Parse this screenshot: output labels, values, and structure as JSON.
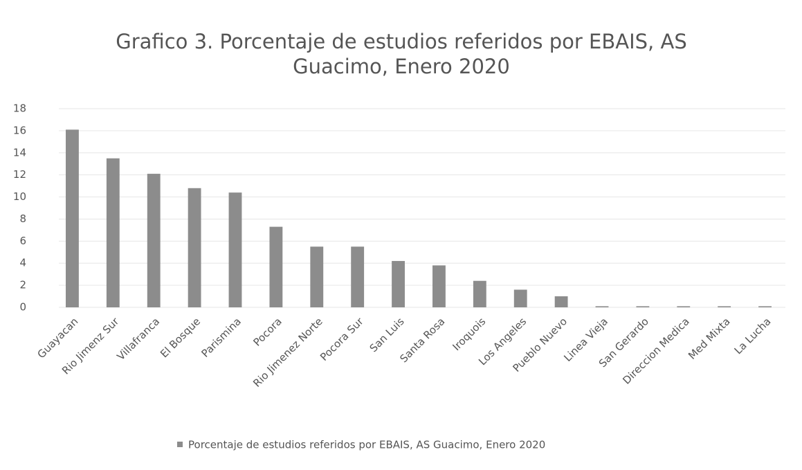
{
  "chart_data": {
    "type": "bar",
    "title": "Grafico 3. Porcentaje de estudios referidos por EBAIS, AS Guacimo, Enero 2020",
    "categories": [
      "Guayacan",
      "Rio Jimenz Sur",
      "Villafranca",
      "El Bosque",
      "Parismina",
      "Pocora",
      "Rio Jimenez Norte",
      "Pocora Sur",
      "San Luis",
      "Santa Rosa",
      "Iroquois",
      "Los Angeles",
      "Pueblo Nuevo",
      "Linea Vieja",
      "San Gerardo",
      "Direccion Medica",
      "Med Mixta",
      "La Lucha"
    ],
    "series": [
      {
        "name": "Porcentaje de estudios referidos por EBAIS, AS Guacimo, Enero 2020",
        "color": "#8c8c8c",
        "values": [
          16.1,
          13.5,
          12.1,
          10.8,
          10.4,
          7.3,
          5.5,
          5.5,
          4.2,
          3.8,
          2.4,
          1.6,
          1.0,
          0.1,
          0.1,
          0.1,
          0.1,
          0.1
        ]
      }
    ],
    "ylim": [
      0,
      18
    ],
    "yticks": [
      0,
      2,
      4,
      6,
      8,
      10,
      12,
      14,
      16,
      18
    ],
    "grid": true,
    "legend": "bottom"
  }
}
